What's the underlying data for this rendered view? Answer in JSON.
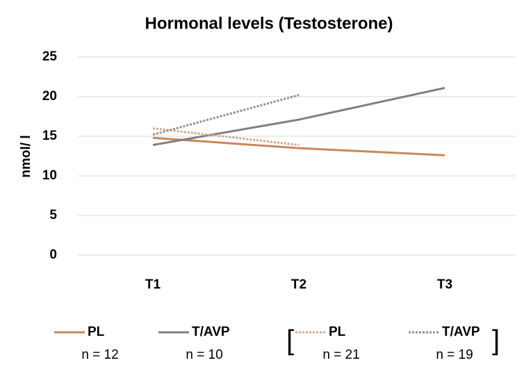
{
  "chart_data": {
    "type": "line",
    "title": "Hormonal levels (Testosterone)",
    "y_label": "nmol/ l",
    "categories": [
      "T1",
      "T2",
      "T3"
    ],
    "ylim": [
      0,
      25
    ],
    "yticks": [
      0,
      5,
      10,
      15,
      20,
      25
    ],
    "grid": true,
    "series": [
      {
        "name": "PL",
        "color": "#c8875a",
        "style": "solid",
        "n_label": "n = 12",
        "values": [
          14.8,
          13.5,
          12.6
        ]
      },
      {
        "name": "T/AVP",
        "color": "#7f7f7f",
        "style": "solid",
        "n_label": "n = 10",
        "values": [
          13.9,
          17.1,
          21.1
        ]
      },
      {
        "name": "PL",
        "color": "#d6a88c",
        "style": "dotted",
        "n_label": "n = 21",
        "values": [
          16.0,
          13.9,
          null
        ]
      },
      {
        "name": "T/AVP",
        "color": "#8f8f8f",
        "style": "dotted",
        "n_label": "n = 19",
        "values": [
          15.2,
          20.2,
          null
        ]
      }
    ]
  }
}
